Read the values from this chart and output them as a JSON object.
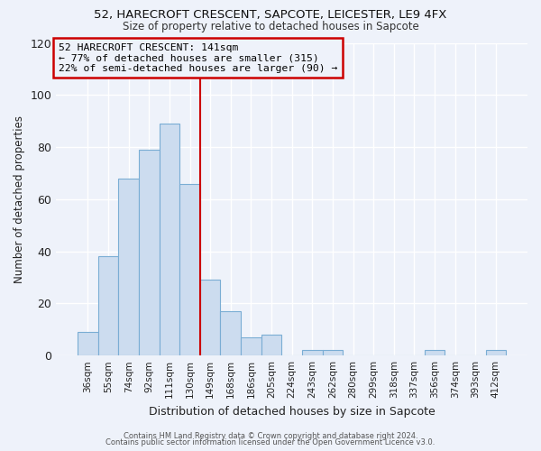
{
  "title": "52, HARECROFT CRESCENT, SAPCOTE, LEICESTER, LE9 4FX",
  "subtitle": "Size of property relative to detached houses in Sapcote",
  "xlabel": "Distribution of detached houses by size in Sapcote",
  "ylabel": "Number of detached properties",
  "bar_labels": [
    "36sqm",
    "55sqm",
    "74sqm",
    "92sqm",
    "111sqm",
    "130sqm",
    "149sqm",
    "168sqm",
    "186sqm",
    "205sqm",
    "224sqm",
    "243sqm",
    "262sqm",
    "280sqm",
    "299sqm",
    "318sqm",
    "337sqm",
    "356sqm",
    "374sqm",
    "393sqm",
    "412sqm"
  ],
  "bar_values": [
    9,
    38,
    68,
    79,
    89,
    66,
    29,
    17,
    7,
    8,
    0,
    2,
    2,
    0,
    0,
    0,
    0,
    2,
    0,
    0,
    2
  ],
  "bar_color": "#CCDCEF",
  "bar_edge_color": "#7AADD4",
  "property_line_x": 6.0,
  "property_line_color": "#CC0000",
  "annotation_line1": "52 HARECROFT CRESCENT: 141sqm",
  "annotation_line2": "← 77% of detached houses are smaller (315)",
  "annotation_line3": "22% of semi-detached houses are larger (90) →",
  "annotation_box_color": "#CC0000",
  "annotation_text_color": "#000000",
  "ylim": [
    0,
    120
  ],
  "yticks": [
    0,
    20,
    40,
    60,
    80,
    100,
    120
  ],
  "background_color": "#EEF2FA",
  "grid_color": "#FFFFFF",
  "footer_line1": "Contains HM Land Registry data © Crown copyright and database right 2024.",
  "footer_line2": "Contains public sector information licensed under the Open Government Licence v3.0."
}
